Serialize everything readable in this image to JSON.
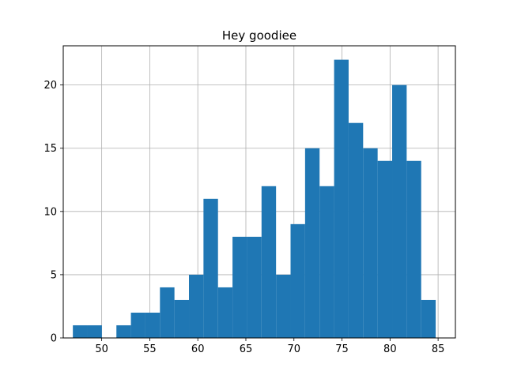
{
  "chart_data": {
    "type": "bar",
    "title": "Hey goodiee",
    "xlabel": "",
    "ylabel": "",
    "xlim": [
      46.0,
      86.8
    ],
    "ylim": [
      0,
      23.1
    ],
    "grid": true,
    "bar_color": "#1f77b4",
    "bin_edges": [
      47.0,
      48.51,
      50.02,
      51.53,
      53.04,
      54.55,
      56.06,
      57.57,
      59.08,
      60.59,
      62.1,
      63.61,
      65.12,
      66.63,
      68.14,
      69.65,
      71.16,
      72.67,
      74.18,
      75.69,
      77.2,
      78.71,
      80.22,
      81.73,
      83.24,
      84.75
    ],
    "counts": [
      1,
      1,
      0,
      1,
      2,
      2,
      4,
      3,
      5,
      11,
      4,
      8,
      8,
      12,
      5,
      9,
      15,
      12,
      22,
      17,
      15,
      14,
      20,
      14,
      3
    ],
    "x_ticks": [
      50,
      55,
      60,
      65,
      70,
      75,
      80,
      85
    ],
    "x_tick_labels": [
      "50",
      "55",
      "60",
      "65",
      "70",
      "75",
      "80",
      "85"
    ],
    "y_ticks": [
      0,
      5,
      10,
      15,
      20
    ],
    "y_tick_labels": [
      "0",
      "5",
      "10",
      "15",
      "20"
    ]
  }
}
